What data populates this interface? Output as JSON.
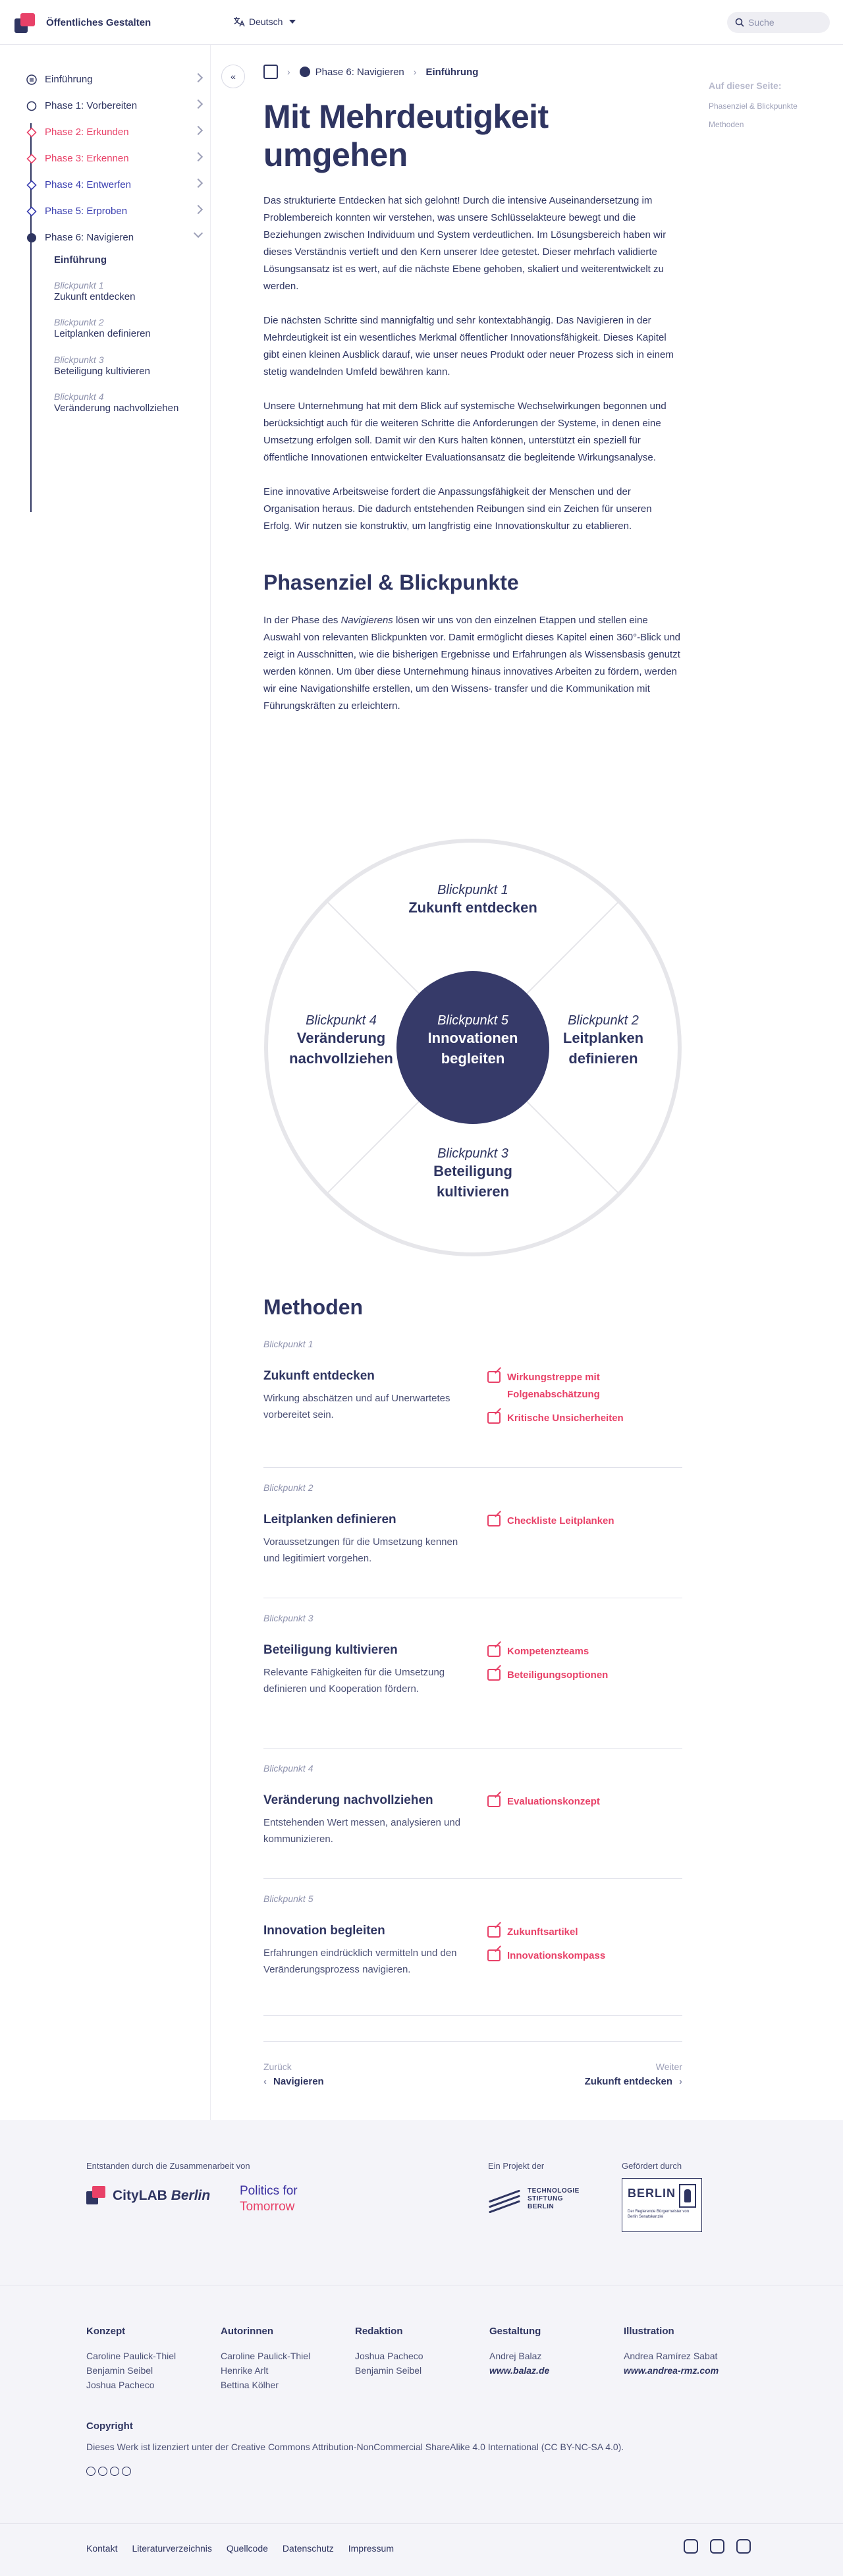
{
  "header": {
    "site_title": "Öffentliches Gestalten",
    "language": "Deutsch",
    "search_placeholder": "Suche"
  },
  "sidebar": {
    "items": [
      {
        "label": "Einführung",
        "color": "#2f3561",
        "marker": "doc"
      },
      {
        "label": "Phase 1: Vorbereiten",
        "color": "#2f3561",
        "marker": "circle"
      },
      {
        "label": "Phase 2: Erkunden",
        "color": "#e84168",
        "marker": "diamond"
      },
      {
        "label": "Phase 3: Erkennen",
        "color": "#e84168",
        "marker": "diamond"
      },
      {
        "label": "Phase 4: Entwerfen",
        "color": "#3a3fb0",
        "marker": "diamond"
      },
      {
        "label": "Phase 5: Erproben",
        "color": "#3a3fb0",
        "marker": "diamond"
      },
      {
        "label": "Phase 6: Navigieren",
        "color": "#2f3561",
        "marker": "filled-circle"
      }
    ],
    "sub_heading": "Einführung",
    "sub_items": [
      {
        "kicker": "Blickpunkt 1",
        "label": "Zukunft entdecken"
      },
      {
        "kicker": "Blickpunkt 2",
        "label": "Leitplanken definieren"
      },
      {
        "kicker": "Blickpunkt 3",
        "label": "Beteiligung kultivieren"
      },
      {
        "kicker": "Blickpunkt 4",
        "label": "Veränderung nachvollziehen"
      }
    ],
    "collapse_glyph": "«"
  },
  "breadcrumb": {
    "sep": "›",
    "phase": "Phase 6: Navigieren",
    "current": "Einführung"
  },
  "toc": {
    "title": "Auf dieser Seite:",
    "items": [
      "Phasenziel & Blickpunkte",
      "Methoden"
    ]
  },
  "main": {
    "title": "Mit Mehrdeutigkeit umgehen",
    "paragraphs": [
      "Das strukturierte Entdecken hat sich gelohnt! Durch die intensive Auseinandersetzung im Problembereich konnten wir verstehen, was unsere Schlüsselakteure bewegt und die Beziehungen zwischen Individuum und System verdeutlichen. Im Lösungsbereich haben wir dieses Verständnis vertieft und den Kern unserer Idee getestet. Dieser mehrfach validierte Lösungsansatz ist es wert, auf die nächste Ebene gehoben, skaliert und weiterentwickelt zu werden.",
      "Die nächsten Schritte sind mannigfaltig und sehr kontextabhängig. Das Navigieren in der Mehrdeutigkeit ist ein wesentliches Merkmal öffentlicher Innovationsfähigkeit. Dieses Kapitel gibt einen kleinen Ausblick darauf, wie unser neues Produkt oder neuer Prozess sich in einem stetig wandelnden Umfeld bewähren kann.",
      "Unsere Unternehmung hat mit dem Blick auf systemische Wechselwirkungen begonnen und berücksichtigt auch für die weiteren Schritte die Anforderungen der Systeme, in denen eine Umsetzung erfolgen soll. Damit wir den Kurs halten können, unterstützt ein speziell für öffentliche Innovationen entwickelter Evaluationsansatz die begleitende Wirkungsanalyse.",
      "Eine innovative Arbeitsweise fordert die Anpassungsfähigkeit der Menschen und der Organisation heraus. Die dadurch entstehenden Reibungen sind ein Zeichen für unseren Erfolg. Wir nutzen sie konstruktiv, um langfristig eine Innovationskultur zu etablieren."
    ],
    "section_heading": "Phasenziel & Blickpunkte",
    "section_para_before": "In der Phase des ",
    "section_para_em": "Navigierens",
    "section_para_after": " lösen wir uns von den einzelnen Etappen und stellen eine Auswahl von relevanten Blickpunkten vor. Damit ermöglicht dieses Kapitel einen 360°-Blick und zeigt in Ausschnitten, wie die bisherigen Ergebnisse und Erfahrungen als Wissensbasis genutzt werden können. Um über diese Unternehmung hinaus innovatives Arbeiten zu fördern, werden wir eine Navigationshilfe erstellen, um den Wissens- transfer und die Kommunikation mit Führungskräften zu erleichtern."
  },
  "diagram": {
    "top": {
      "kicker": "Blickpunkt 1",
      "label": "Zukunft entdecken"
    },
    "right": {
      "kicker": "Blickpunkt 2",
      "label": "Leitplanken definieren"
    },
    "bottom": {
      "kicker": "Blickpunkt 3",
      "label": "Beteiligung kultivieren"
    },
    "left": {
      "kicker": "Blickpunkt 4",
      "label": "Veränderung nachvollziehen"
    },
    "center": {
      "kicker": "Blickpunkt 5",
      "label": "Innovationen begleiten"
    }
  },
  "methods": {
    "heading": "Methoden",
    "blocks": [
      {
        "kicker": "Blickpunkt 1",
        "title": "Zukunft entdecken",
        "desc": "Wirkung abschätzen und auf Unerwartetes vorbereitet sein.",
        "links": [
          "Wirkungstreppe mit Folgenabschätzung",
          "Kritische Unsicherheiten"
        ]
      },
      {
        "kicker": "Blickpunkt 2",
        "title": "Leitplanken definieren",
        "desc": "Voraussetzungen für die Umsetzung kennen und legitimiert vorgehen.",
        "links": [
          "Checkliste Leitplanken"
        ]
      },
      {
        "kicker": "Blickpunkt 3",
        "title": "Beteiligung kultivieren",
        "desc": "Relevante Fähigkeiten für die Umsetzung definieren und Kooperation fördern.",
        "links": [
          "Kompetenzteams",
          "Beteiligungsoptionen"
        ]
      },
      {
        "kicker": "Blickpunkt 4",
        "title": "Veränderung nachvollziehen",
        "desc": "Entstehenden Wert messen, analysieren und kommunizieren.",
        "links": [
          "Evaluationskonzept"
        ]
      },
      {
        "kicker": "Blickpunkt 5",
        "title": "Innovation begleiten",
        "desc": "Erfahrungen eindrücklich vermitteln und den Veränderungsprozess navigieren.",
        "links": [
          "Zukunftsartikel",
          "Innovationskompass"
        ]
      }
    ]
  },
  "pager": {
    "prev_label": "Zurück",
    "prev_title": "Navigieren",
    "next_label": "Weiter",
    "next_title": "Zukunft entdecken"
  },
  "footer": {
    "created_by": "Entstanden durch die Zusammenarbeit von",
    "citylab_name": "CityLAB",
    "citylab_city": "Berlin",
    "pft_line1": "Politics for",
    "pft_line2": "Tomorrow",
    "project_of": "Ein Projekt der",
    "tsb_text": "TECHNOLOGIE STIFTUNG BERLIN",
    "funded_by": "Gefördert durch",
    "berlin_text": "BERLIN",
    "berlin_small": "Der Regierende Bürgermeister von Berlin Senatskanzlei",
    "credits": [
      {
        "heading": "Konzept",
        "names": [
          "Caroline Paulick-Thiel",
          "Benjamin Seibel",
          "Joshua Pacheco"
        ],
        "italic": false
      },
      {
        "heading": "Autorinnen",
        "names": [
          "Caroline Paulick-Thiel",
          "Henrike Arlt",
          "Bettina Kölher"
        ],
        "italic": false
      },
      {
        "heading": "Redaktion",
        "names": [
          "Joshua Pacheco",
          "Benjamin Seibel"
        ],
        "italic": false
      },
      {
        "heading": "Gestaltung",
        "names": [
          "Andrej Balaz",
          "www.balaz.de"
        ],
        "italic": true
      },
      {
        "heading": "Illustration",
        "names": [
          "Andrea Ramírez Sabat",
          "www.andrea-rmz.com"
        ],
        "italic": true
      }
    ],
    "copyright_heading": "Copyright",
    "copyright_text": "Dieses Werk ist lizenziert unter der Creative Commons Attribution-NonCommercial ShareAlike 4.0 International (CC BY-NC-SA 4.0).",
    "links": [
      "Kontakt",
      "Literaturverzeichnis",
      "Quellcode",
      "Datenschutz",
      "Impressum"
    ],
    "social": [
      "instagram-icon",
      "twitter-icon",
      "linkedin-icon"
    ]
  }
}
